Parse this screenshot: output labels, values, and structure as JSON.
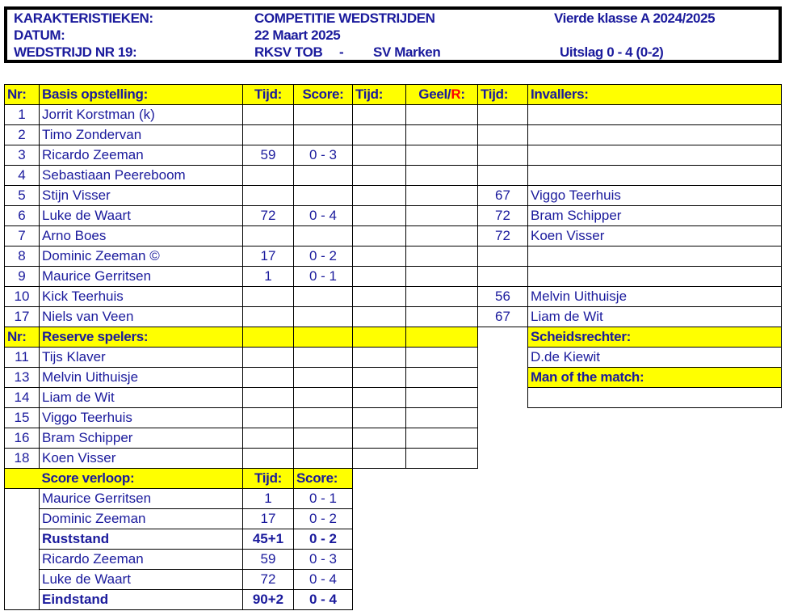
{
  "header": {
    "karakteristieken_label": "KARAKTERISTIEKEN:",
    "competition": "COMPETITIE WEDSTRIJDEN",
    "class": "Vierde klasse A  2024/2025",
    "datum_label": "DATUM:",
    "datum": "22 Maart 2025",
    "match_label": "WEDSTRIJD NR 19:",
    "home": "RKSV TOB",
    "dash": "-",
    "away": "SV Marken",
    "result": "Uitslag 0 - 4 (0-2)"
  },
  "columns": {
    "nr": "Nr:",
    "basis": "Basis opstelling:",
    "tijd": "Tijd:",
    "score": "Score:",
    "geel": "Geel/",
    "rood": "R",
    "geel_suffix": ":",
    "invallers": "Invallers:"
  },
  "lineup": [
    {
      "nr": "1",
      "name": "Jorrit Korstman (k)",
      "tijd": "",
      "score": "",
      "tijd2": "",
      "geel": "",
      "tijd3": "",
      "invaller": ""
    },
    {
      "nr": "2",
      "name": "Timo Zondervan",
      "tijd": "",
      "score": "",
      "tijd2": "",
      "geel": "",
      "tijd3": "",
      "invaller": ""
    },
    {
      "nr": "3",
      "name": "Ricardo Zeeman",
      "tijd": "59",
      "score": "0 - 3",
      "tijd2": "",
      "geel": "",
      "tijd3": "",
      "invaller": ""
    },
    {
      "nr": "4",
      "name": "Sebastiaan Peereboom",
      "tijd": "",
      "score": "",
      "tijd2": "",
      "geel": "",
      "tijd3": "",
      "invaller": ""
    },
    {
      "nr": "5",
      "name": "Stijn Visser",
      "tijd": "",
      "score": "",
      "tijd2": "",
      "geel": "",
      "tijd3": "67",
      "invaller": "Viggo Teerhuis"
    },
    {
      "nr": "6",
      "name": "Luke de Waart",
      "tijd": "72",
      "score": "0 - 4",
      "tijd2": "",
      "geel": "",
      "tijd3": "72",
      "invaller": "Bram Schipper"
    },
    {
      "nr": "7",
      "name": "Arno Boes",
      "tijd": "",
      "score": "",
      "tijd2": "",
      "geel": "",
      "tijd3": "72",
      "invaller": "Koen Visser"
    },
    {
      "nr": "8",
      "name": "Dominic Zeeman ©",
      "tijd": "17",
      "score": "0 - 2",
      "tijd2": "",
      "geel": "",
      "tijd3": "",
      "invaller": ""
    },
    {
      "nr": "9",
      "name": "Maurice Gerritsen",
      "tijd": "1",
      "score": "0 - 1",
      "tijd2": "",
      "geel": "",
      "tijd3": "",
      "invaller": ""
    },
    {
      "nr": "10",
      "name": "Kick Teerhuis",
      "tijd": "",
      "score": "",
      "tijd2": "",
      "geel": "",
      "tijd3": "56",
      "invaller": "Melvin Uithuisje"
    },
    {
      "nr": "17",
      "name": "Niels van Veen",
      "tijd": "",
      "score": "",
      "tijd2": "",
      "geel": "",
      "tijd3": "67",
      "invaller": "Liam de Wit"
    }
  ],
  "reserve": {
    "nr_label": "Nr:",
    "label": "Reserve spelers:",
    "scheids_label": "Scheidsrechter:",
    "scheids": "D.de Kiewit",
    "motm_label": "Man of the match:",
    "motm": "",
    "players": [
      {
        "nr": "11",
        "name": "Tijs Klaver"
      },
      {
        "nr": "13",
        "name": "Melvin Uithuisje"
      },
      {
        "nr": "14",
        "name": "Liam de Wit"
      },
      {
        "nr": "15",
        "name": "Viggo Teerhuis"
      },
      {
        "nr": "16",
        "name": "Bram Schipper"
      },
      {
        "nr": "18",
        "name": "Koen Visser"
      }
    ]
  },
  "score_verloop": {
    "label": "Score verloop:",
    "tijd_label": "Tijd:",
    "score_label": "Score:",
    "rows": [
      {
        "name": "Maurice Gerritsen",
        "tijd": "1",
        "score": "0 - 1",
        "bold": false
      },
      {
        "name": "Dominic Zeeman",
        "tijd": "17",
        "score": "0 - 2",
        "bold": false
      },
      {
        "name": "Ruststand",
        "tijd": "45+1",
        "score": "0 - 2",
        "bold": true
      },
      {
        "name": "Ricardo Zeeman",
        "tijd": "59",
        "score": "0 - 3",
        "bold": false
      },
      {
        "name": "Luke de Waart",
        "tijd": "72",
        "score": "0 - 4",
        "bold": false
      },
      {
        "name": "Eindstand",
        "tijd": "90+2",
        "score": "0 - 4",
        "bold": true
      }
    ]
  },
  "colors": {
    "text": "#1a1a9c",
    "header_fill": "#ffff00",
    "red": "#ff0000"
  }
}
